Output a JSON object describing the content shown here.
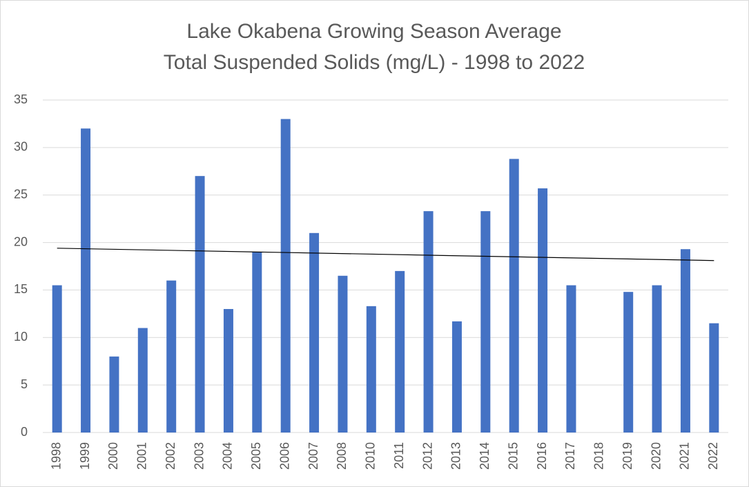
{
  "chart_data": {
    "type": "bar",
    "title": [
      "Lake Okabena Growing Season Average",
      "Total Suspended Solids (mg/L) - 1998 to 2022"
    ],
    "categories": [
      "1998",
      "1999",
      "2000",
      "2001",
      "2002",
      "2003",
      "2004",
      "2005",
      "2006",
      "2007",
      "2008",
      "2010",
      "2011",
      "2012",
      "2013",
      "2014",
      "2015",
      "2016",
      "2017",
      "2018",
      "2019",
      "2020",
      "2021",
      "2022"
    ],
    "values": [
      15.5,
      32,
      8,
      11,
      16,
      27,
      13,
      19,
      33,
      21,
      16.5,
      13.3,
      17,
      23.3,
      11.7,
      23.3,
      28.8,
      25.7,
      15.5,
      null,
      14.8,
      15.5,
      19.3,
      11.5
    ],
    "color": "#4472c4",
    "trendline": {
      "values": [
        19.4,
        18.1
      ],
      "color": "#000000"
    },
    "ylim": [
      0,
      35
    ],
    "yticks": [
      0,
      5,
      10,
      15,
      20,
      25,
      30,
      35
    ],
    "grid": true
  }
}
